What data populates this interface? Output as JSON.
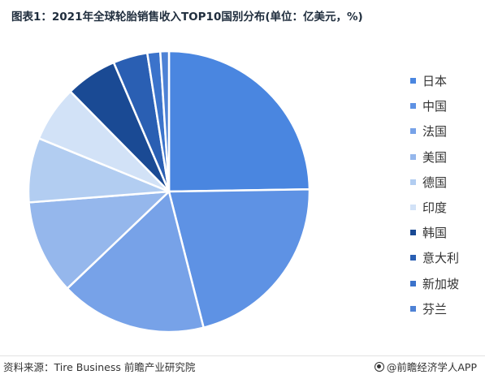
{
  "header": {
    "title": "图表1：2021年全球轮胎销售收入TOP10国别分布(单位：亿美元，%)"
  },
  "chart_data": {
    "type": "pie",
    "title": "图表1：2021年全球轮胎销售收入TOP10国别分布(单位：亿美元，%)",
    "categories": [
      "日本",
      "中国",
      "法国",
      "美国",
      "德国",
      "印度",
      "韩国",
      "意大利",
      "新加坡",
      "芬兰"
    ],
    "values": [
      25,
      21.5,
      17,
      11,
      7.5,
      6.5,
      6,
      4,
      1.5,
      1
    ],
    "unit": "%",
    "start_angle_deg": 0,
    "direction": "clockwise",
    "colors": [
      "#4a86e0",
      "#5e92e4",
      "#77a2e8",
      "#95b7ec",
      "#b2cdf1",
      "#d2e2f7",
      "#1a4a94",
      "#2a5fb3",
      "#3b73cb",
      "#4e82d5"
    ],
    "legend": "right",
    "edge_color": "#ffffff"
  },
  "footer": {
    "source": "资料来源：Tire Business 前瞻产业研究院",
    "brand": "@前瞻经济学人APP"
  }
}
